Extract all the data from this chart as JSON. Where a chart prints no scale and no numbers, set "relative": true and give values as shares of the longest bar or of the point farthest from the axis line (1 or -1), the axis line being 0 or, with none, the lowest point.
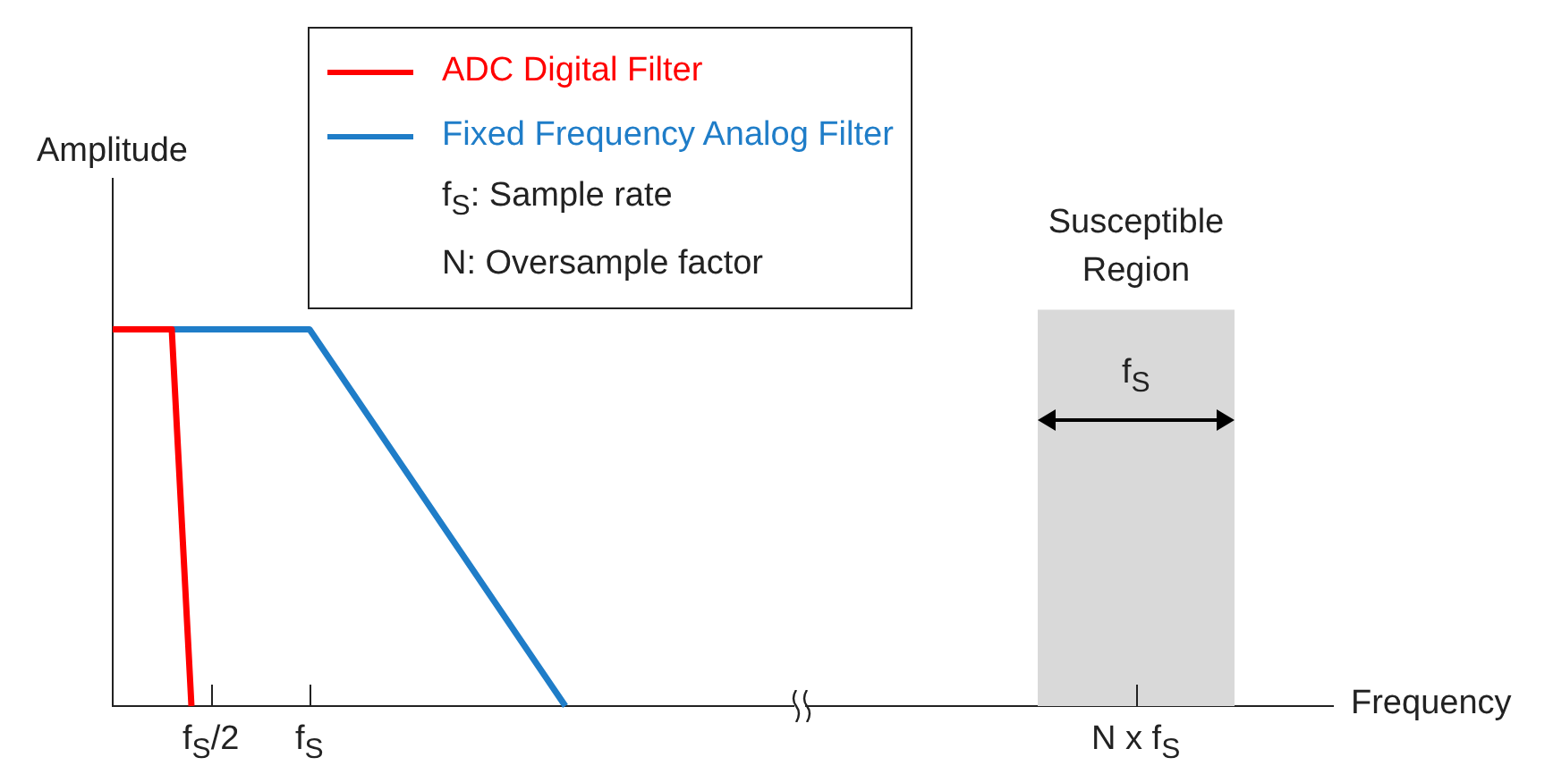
{
  "chart_data": {
    "type": "line",
    "relative": true,
    "xlabel": "Frequency",
    "ylabel": "Amplitude",
    "categories": [
      null,
      null,
      null,
      null,
      null,
      "f$_{S}$/2",
      null,
      null,
      null,
      null,
      "f$_{S}$",
      null,
      null,
      null,
      null,
      null,
      null,
      null,
      null,
      null,
      null,
      null,
      null,
      null,
      null,
      null,
      null,
      null,
      null,
      null,
      null,
      null,
      null,
      null,
      null,
      null,
      null,
      null,
      null,
      null,
      null,
      null,
      null,
      null,
      null,
      null,
      null,
      null,
      null,
      null,
      null,
      null,
      "N x f$_{S}$",
      null,
      null,
      null,
      null,
      null,
      null,
      null,
      null,
      null,
      null
    ],
    "series": [
      {
        "name": "ADC Digital Filter",
        "color": "#ff0000",
        "values": [
          1,
          null,
          null,
          1,
          0,
          null,
          null,
          null,
          null,
          null,
          null,
          null,
          null,
          null,
          null,
          null,
          null,
          null,
          null,
          null,
          null,
          null,
          null,
          null,
          null,
          null,
          null,
          null,
          null,
          null,
          null,
          null,
          null,
          null,
          null,
          null,
          null,
          null,
          null,
          null,
          null,
          null,
          null,
          null,
          null,
          null,
          null,
          null,
          null,
          null,
          null,
          null,
          null,
          null,
          null,
          null,
          null,
          null,
          null,
          null,
          null,
          null,
          null
        ]
      },
      {
        "name": "Fixed Frequency Analog Filter",
        "color": "#1f7dc8",
        "values": [
          null,
          null,
          null,
          1,
          null,
          null,
          null,
          null,
          null,
          null,
          1,
          null,
          null,
          null,
          null,
          null,
          null,
          null,
          null,
          null,
          null,
          null,
          null,
          0,
          null,
          null,
          null,
          null,
          null,
          null,
          null,
          null,
          null,
          null,
          null,
          null,
          null,
          null,
          null,
          null,
          null,
          null,
          null,
          null,
          null,
          null,
          null,
          null,
          null,
          null,
          null,
          null,
          null,
          null,
          null,
          null,
          null,
          null,
          null,
          null,
          null,
          null,
          null
        ]
      }
    ],
    "annotations": [
      "Susceptible Region",
      "f$_{S}$",
      "f$_{S}$: Sample rate",
      "N: Oversample factor"
    ],
    "legend": "top",
    "grid": false,
    "marker": "none",
    "line_style": "solid"
  }
}
